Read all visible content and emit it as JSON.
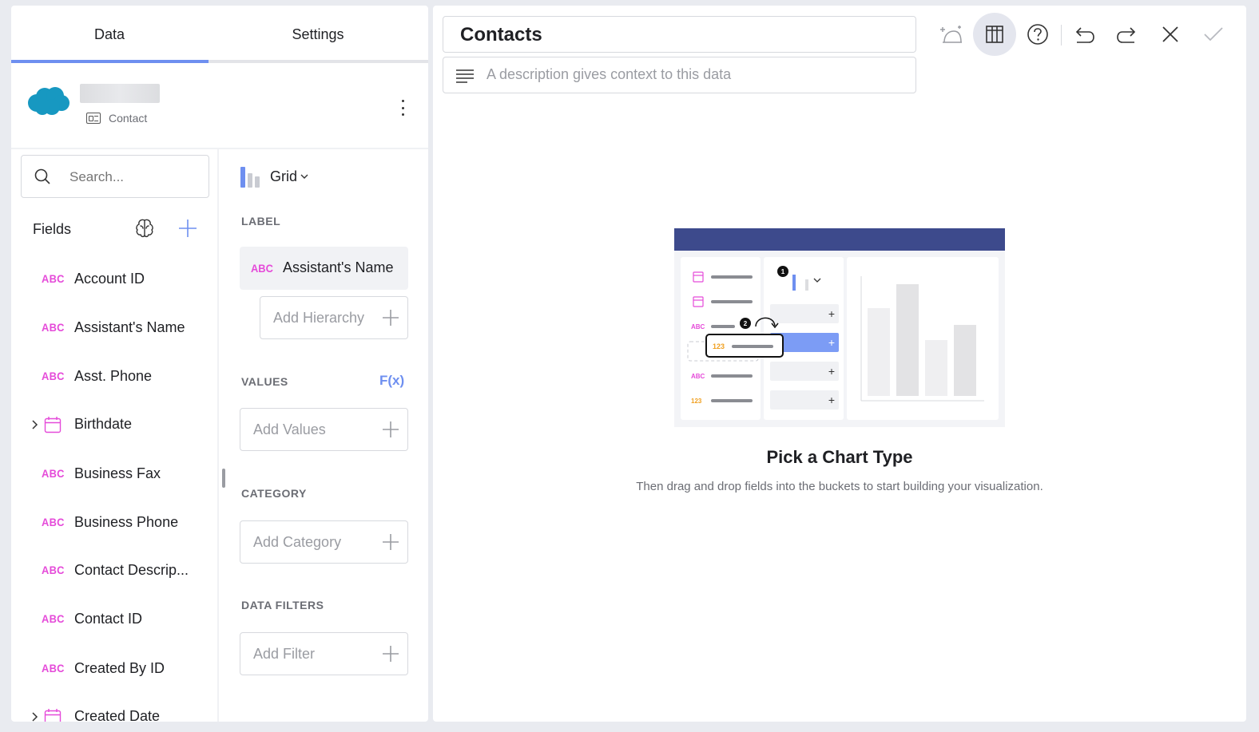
{
  "tabs": {
    "data": "Data",
    "settings": "Settings"
  },
  "source": {
    "type": "Contact"
  },
  "search": {
    "placeholder": "Search..."
  },
  "fields": {
    "heading": "Fields",
    "items": [
      {
        "type": "ABC",
        "label": "Account ID"
      },
      {
        "type": "ABC",
        "label": "Assistant's Name"
      },
      {
        "type": "ABC",
        "label": "Asst. Phone"
      },
      {
        "type": "date",
        "label": "Birthdate",
        "expandable": true
      },
      {
        "type": "ABC",
        "label": "Business Fax"
      },
      {
        "type": "ABC",
        "label": "Business Phone"
      },
      {
        "type": "ABC",
        "label": "Contact Descrip..."
      },
      {
        "type": "ABC",
        "label": "Contact ID"
      },
      {
        "type": "ABC",
        "label": "Created By ID"
      },
      {
        "type": "date",
        "label": "Created Date",
        "expandable": true
      }
    ]
  },
  "visualization": {
    "label": "Grid"
  },
  "buckets": {
    "label": {
      "title": "LABEL",
      "field_type": "ABC",
      "field_label": "Assistant's Name",
      "add_hierarchy": "Add Hierarchy"
    },
    "values": {
      "title": "VALUES",
      "fx": "F(x)",
      "add": "Add Values"
    },
    "category": {
      "title": "CATEGORY",
      "add": "Add Category"
    },
    "filters": {
      "title": "DATA FILTERS",
      "add": "Add Filter"
    }
  },
  "main": {
    "title": "Contacts",
    "description_placeholder": "A description gives context to this data",
    "empty_title": "Pick a Chart Type",
    "empty_subtitle": "Then drag and drop fields into the buckets to start building your visualization."
  },
  "illustration": {
    "step1": "1",
    "step2": "2",
    "abc": "ABC",
    "num": "123"
  },
  "colors": {
    "accent": "#6e8ff0",
    "abc_type": "#e54bd9",
    "number_type": "#f0a020",
    "header_bar": "#3d4a8c",
    "salesforce": "#1798c1"
  },
  "toolbar_icons": [
    "ai-assistant-icon",
    "grid-view-icon",
    "help-icon",
    "undo-icon",
    "redo-icon",
    "close-icon",
    "check-icon"
  ]
}
